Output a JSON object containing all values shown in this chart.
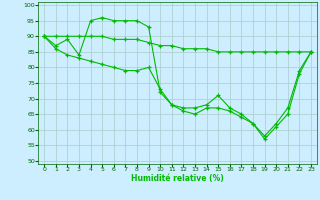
{
  "xlabel": "Humidité relative (%)",
  "bg_color": "#cceeff",
  "grid_color": "#aacccc",
  "line_color": "#00bb00",
  "xlim": [
    -0.5,
    23.5
  ],
  "ylim": [
    49,
    101
  ],
  "yticks": [
    50,
    55,
    60,
    65,
    70,
    75,
    80,
    85,
    90,
    95,
    100
  ],
  "xticks": [
    0,
    1,
    2,
    3,
    4,
    5,
    6,
    7,
    8,
    9,
    10,
    11,
    12,
    13,
    14,
    15,
    16,
    17,
    18,
    19,
    20,
    21,
    22,
    23
  ],
  "series": [
    [
      90,
      87,
      89,
      84,
      95,
      96,
      95,
      95,
      95,
      93,
      72,
      68,
      67,
      67,
      68,
      71,
      67,
      65,
      62,
      58,
      62,
      67,
      79,
      85
    ],
    [
      90,
      86,
      84,
      83,
      82,
      81,
      80,
      79,
      79,
      80,
      73,
      68,
      66,
      65,
      67,
      67,
      66,
      64,
      62,
      57,
      61,
      65,
      78,
      85
    ],
    [
      90,
      90,
      90,
      90,
      90,
      90,
      89,
      89,
      89,
      88,
      87,
      87,
      86,
      86,
      86,
      85,
      85,
      85,
      85,
      85,
      85,
      85,
      85,
      85
    ]
  ]
}
